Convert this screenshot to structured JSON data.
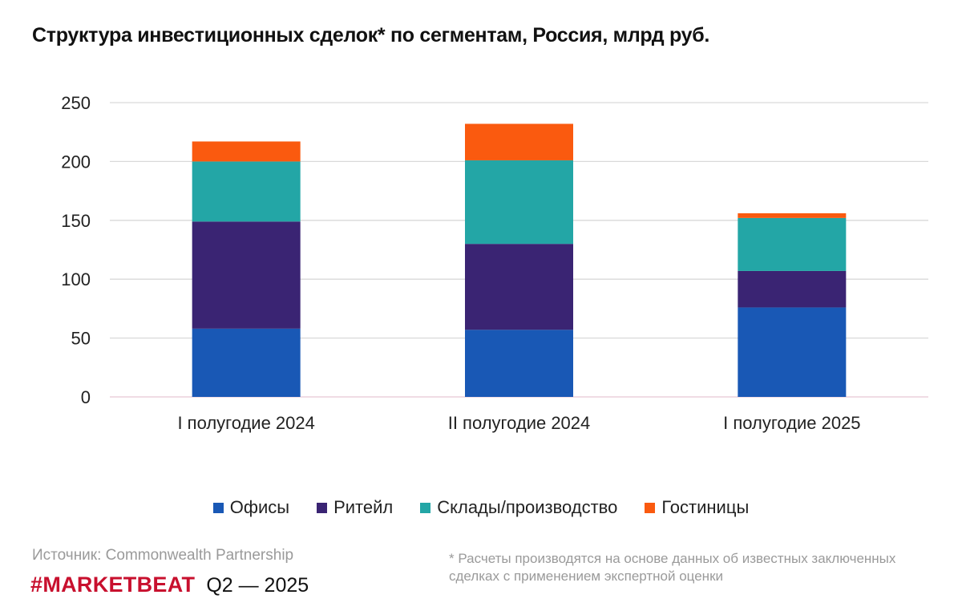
{
  "chart_data": {
    "type": "bar",
    "stacked": true,
    "title": "Структура инвестиционных сделок* по сегментам, Россия, млрд руб.",
    "categories": [
      "I полугодие 2024",
      "II полугодие 2024",
      "I полугодие 2025"
    ],
    "series": [
      {
        "name": "Офисы",
        "color": "#1958b5",
        "values": [
          58,
          57,
          76
        ]
      },
      {
        "name": "Ритейл",
        "color": "#3a2473",
        "values": [
          91,
          73,
          31
        ]
      },
      {
        "name": "Склады/производство",
        "color": "#23a6a6",
        "values": [
          51,
          71,
          45
        ]
      },
      {
        "name": "Гостиницы",
        "color": "#fa5a0f",
        "values": [
          17,
          31,
          4
        ]
      }
    ],
    "ylim": [
      0,
      250
    ],
    "yticks": [
      0,
      50,
      100,
      150,
      200,
      250
    ],
    "grid": true,
    "legend": "bottom"
  },
  "footer": {
    "source": "Источник: Commonwealth Partnership",
    "brand": "#MARKETBEAT",
    "period": "Q2  —  2025",
    "footnote": "* Расчеты производятся на основе данных об известных заключенных сделках с применением экспертной оценки"
  }
}
